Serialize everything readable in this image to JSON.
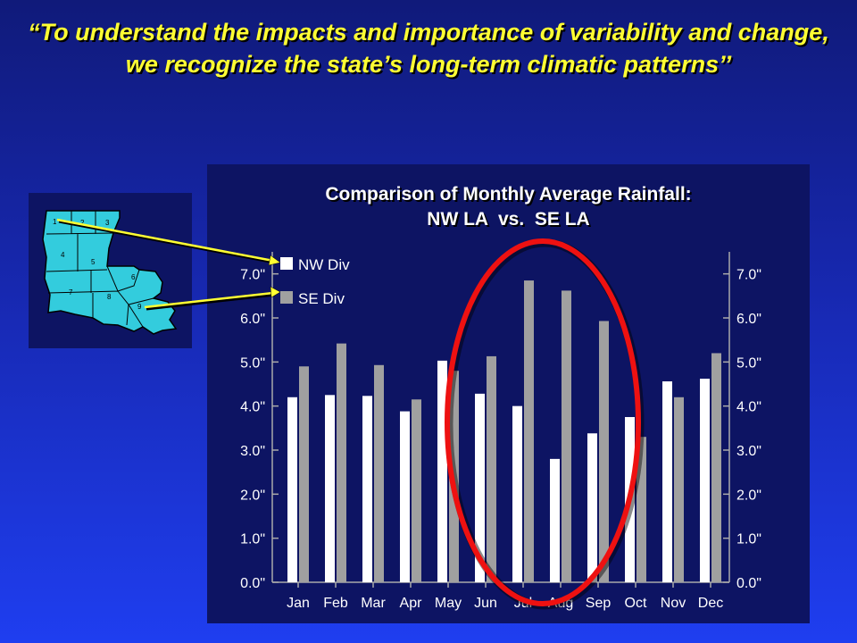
{
  "slide": {
    "title_open_quote": "“",
    "title_text": "To understand the impacts and importance of variability and change, we recognize the state’s long-term climatic patterns",
    "title_close_quote": "’’"
  },
  "map": {
    "division_numbers": [
      "1",
      "2",
      "3",
      "4",
      "5",
      "6",
      "7",
      "8",
      "9"
    ],
    "fill_color": "#33ccdd"
  },
  "chart_data": {
    "type": "bar",
    "title_line1": "Comparison of Monthly Average Rainfall:",
    "title_line2": "NW LA  vs.  SE LA",
    "categories": [
      "Jan",
      "Feb",
      "Mar",
      "Apr",
      "May",
      "Jun",
      "Jul",
      "Aug",
      "Sep",
      "Oct",
      "Nov",
      "Dec"
    ],
    "series": [
      {
        "name": "NW Div",
        "color": "#ffffff",
        "values": [
          4.2,
          4.25,
          4.23,
          3.88,
          5.03,
          4.28,
          4.0,
          2.8,
          3.38,
          3.75,
          4.56,
          4.62
        ]
      },
      {
        "name": "SE Div",
        "color": "#a0a0a0",
        "values": [
          4.9,
          5.42,
          4.93,
          4.15,
          4.8,
          5.13,
          6.85,
          6.62,
          5.93,
          3.3,
          4.2,
          5.2
        ]
      }
    ],
    "ylim": [
      0,
      7.5
    ],
    "yticks": [
      "0.0\"",
      "1.0\"",
      "2.0\"",
      "3.0\"",
      "4.0\"",
      "5.0\"",
      "6.0\"",
      "7.0\""
    ],
    "legend": "top-left",
    "grid": false,
    "highlight": {
      "shape": "ellipse",
      "color": "#ee1111",
      "months": [
        "Jun",
        "Jul",
        "Aug",
        "Sep",
        "Oct"
      ]
    },
    "axis_color": "#aaaaaa"
  },
  "callouts": {
    "color": "#ffff33"
  }
}
